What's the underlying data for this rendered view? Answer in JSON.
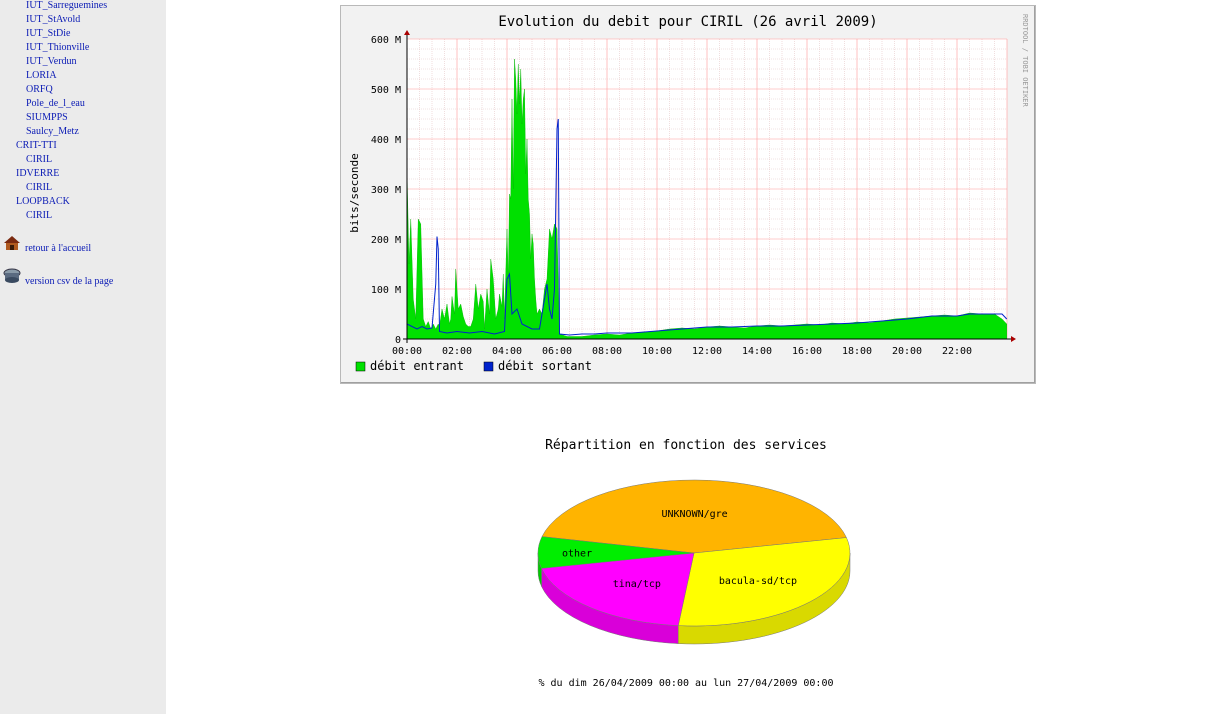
{
  "sidebar": {
    "sites_top": [
      "IUT_Sarreguemines",
      "IUT_StAvold",
      "IUT_StDie",
      "IUT_Thionville",
      "IUT_Verdun",
      "LORIA",
      "ORFQ",
      "Pole_de_l_eau",
      "SIUMPPS",
      "Saulcy_Metz"
    ],
    "groups": [
      {
        "name": "CRIT-TTI",
        "items": [
          "CIRIL"
        ]
      },
      {
        "name": "IDVERRE",
        "items": [
          "CIRIL"
        ]
      },
      {
        "name": "LOOPBACK",
        "items": [
          "CIRIL"
        ]
      }
    ],
    "home_link": {
      "label": "retour à l'accueil",
      "icon": "house-icon"
    },
    "csv_link": {
      "label": "version csv de la page",
      "icon": "disk-icon"
    }
  },
  "traffic_graph": {
    "title": "Evolution du debit pour CIRIL (26 avril 2009)",
    "ylabel": "bits/seconde",
    "watermark": "RRDTOOL / TOBI OETIKER",
    "legend_in": "débit entrant",
    "legend_out": "débit sortant",
    "colors": {
      "in": "#00e000",
      "out": "#0022cc",
      "grid_major": "#ff9999",
      "grid_minor": "#e6c8c8",
      "background": "#ffffff",
      "canvas": "#f2f2f2"
    }
  },
  "pie": {
    "title": "Répartition en fonction des services",
    "footer": "% du dim 26/04/2009 00:00 au lun 27/04/2009 00:00",
    "labels": {
      "unknown": "UNKNOWN/gre",
      "bacula": "bacula-sd/tcp",
      "tina": "tina/tcp",
      "other": "other"
    },
    "colors": {
      "unknown": "#ffb400",
      "bacula": "#ffff00",
      "tina": "#ff00ff",
      "other": "#00ee00"
    }
  },
  "chart_data": [
    {
      "type": "area",
      "title": "Evolution du debit pour CIRIL (26 avril 2009)",
      "ylabel": "bits/seconde",
      "ylim": [
        0,
        600
      ],
      "yunit": "M",
      "yticks": [
        "0",
        "100 M",
        "200 M",
        "300 M",
        "400 M",
        "500 M",
        "600 M"
      ],
      "xticks": [
        "00:00",
        "02:00",
        "04:00",
        "06:00",
        "08:00",
        "10:00",
        "12:00",
        "14:00",
        "16:00",
        "18:00",
        "20:00",
        "22:00"
      ],
      "xlim_hours": [
        0,
        24
      ],
      "grid": true,
      "legend_placement": "bottom-left",
      "series": [
        {
          "name": "débit entrant",
          "points": [
            [
              0.0,
              340
            ],
            [
              0.08,
              150
            ],
            [
              0.15,
              240
            ],
            [
              0.25,
              80
            ],
            [
              0.35,
              40
            ],
            [
              0.45,
              240
            ],
            [
              0.55,
              230
            ],
            [
              0.65,
              40
            ],
            [
              0.75,
              25
            ],
            [
              0.85,
              35
            ],
            [
              0.95,
              20
            ],
            [
              1.05,
              30
            ],
            [
              1.15,
              20
            ],
            [
              1.25,
              30
            ],
            [
              1.3,
              25
            ],
            [
              1.4,
              60
            ],
            [
              1.5,
              40
            ],
            [
              1.6,
              70
            ],
            [
              1.7,
              30
            ],
            [
              1.75,
              40
            ],
            [
              1.8,
              85
            ],
            [
              1.9,
              50
            ],
            [
              1.95,
              140
            ],
            [
              2.05,
              60
            ],
            [
              2.15,
              70
            ],
            [
              2.25,
              45
            ],
            [
              2.35,
              30
            ],
            [
              2.45,
              25
            ],
            [
              2.55,
              25
            ],
            [
              2.65,
              40
            ],
            [
              2.75,
              110
            ],
            [
              2.85,
              60
            ],
            [
              2.95,
              90
            ],
            [
              3.05,
              75
            ],
            [
              3.1,
              20
            ],
            [
              3.2,
              100
            ],
            [
              3.3,
              50
            ],
            [
              3.35,
              160
            ],
            [
              3.45,
              120
            ],
            [
              3.55,
              40
            ],
            [
              3.65,
              60
            ],
            [
              3.7,
              90
            ],
            [
              3.8,
              65
            ],
            [
              3.85,
              130
            ],
            [
              3.9,
              40
            ],
            [
              4.0,
              220
            ],
            [
              4.05,
              120
            ],
            [
              4.1,
              290
            ],
            [
              4.15,
              280
            ],
            [
              4.2,
              480
            ],
            [
              4.25,
              300
            ],
            [
              4.3,
              560
            ],
            [
              4.35,
              520
            ],
            [
              4.4,
              450
            ],
            [
              4.45,
              550
            ],
            [
              4.5,
              470
            ],
            [
              4.55,
              540
            ],
            [
              4.6,
              430
            ],
            [
              4.65,
              480
            ],
            [
              4.7,
              500
            ],
            [
              4.75,
              330
            ],
            [
              4.8,
              400
            ],
            [
              4.85,
              280
            ],
            [
              4.9,
              250
            ],
            [
              4.95,
              160
            ],
            [
              5.0,
              210
            ],
            [
              5.05,
              190
            ],
            [
              5.1,
              120
            ],
            [
              5.15,
              80
            ],
            [
              5.2,
              50
            ],
            [
              5.3,
              60
            ],
            [
              5.4,
              50
            ],
            [
              5.5,
              100
            ],
            [
              5.6,
              120
            ],
            [
              5.7,
              220
            ],
            [
              5.8,
              200
            ],
            [
              5.9,
              230
            ],
            [
              6.0,
              220
            ],
            [
              6.1,
              10
            ],
            [
              6.4,
              5
            ],
            [
              7.0,
              5
            ],
            [
              7.5,
              8
            ],
            [
              8.0,
              10
            ],
            [
              8.5,
              8
            ],
            [
              9.0,
              12
            ],
            [
              9.5,
              14
            ],
            [
              10.0,
              16
            ],
            [
              10.5,
              20
            ],
            [
              11.0,
              22
            ],
            [
              11.5,
              20
            ],
            [
              12.0,
              24
            ],
            [
              12.5,
              26
            ],
            [
              13.0,
              24
            ],
            [
              13.5,
              22
            ],
            [
              14.0,
              26
            ],
            [
              14.5,
              28
            ],
            [
              15.0,
              26
            ],
            [
              15.5,
              28
            ],
            [
              16.0,
              30
            ],
            [
              16.5,
              28
            ],
            [
              17.0,
              32
            ],
            [
              17.5,
              30
            ],
            [
              18.0,
              34
            ],
            [
              18.5,
              32
            ],
            [
              19.0,
              36
            ],
            [
              19.5,
              40
            ],
            [
              20.0,
              42
            ],
            [
              20.5,
              44
            ],
            [
              21.0,
              46
            ],
            [
              21.5,
              48
            ],
            [
              22.0,
              46
            ],
            [
              22.5,
              52
            ],
            [
              23.0,
              50
            ],
            [
              23.5,
              50
            ],
            [
              23.8,
              40
            ],
            [
              23.99,
              30
            ]
          ]
        },
        {
          "name": "débit sortant",
          "points": [
            [
              0.0,
              30
            ],
            [
              0.2,
              25
            ],
            [
              0.4,
              20
            ],
            [
              0.6,
              25
            ],
            [
              0.8,
              20
            ],
            [
              1.0,
              22
            ],
            [
              1.15,
              110
            ],
            [
              1.2,
              205
            ],
            [
              1.25,
              180
            ],
            [
              1.3,
              15
            ],
            [
              1.6,
              12
            ],
            [
              2.0,
              15
            ],
            [
              2.5,
              12
            ],
            [
              3.0,
              15
            ],
            [
              3.5,
              10
            ],
            [
              3.9,
              15
            ],
            [
              4.0,
              120
            ],
            [
              4.1,
              130
            ],
            [
              4.2,
              50
            ],
            [
              4.4,
              60
            ],
            [
              4.6,
              30
            ],
            [
              5.0,
              20
            ],
            [
              5.3,
              20
            ],
            [
              5.5,
              80
            ],
            [
              5.6,
              110
            ],
            [
              5.7,
              60
            ],
            [
              5.8,
              40
            ],
            [
              5.9,
              100
            ],
            [
              6.0,
              420
            ],
            [
              6.05,
              440
            ],
            [
              6.1,
              10
            ],
            [
              6.5,
              8
            ],
            [
              7.0,
              10
            ],
            [
              7.5,
              10
            ],
            [
              8.0,
              12
            ],
            [
              9.0,
              12
            ],
            [
              10.0,
              16
            ],
            [
              11.0,
              20
            ],
            [
              12.0,
              24
            ],
            [
              13.0,
              24
            ],
            [
              14.0,
              26
            ],
            [
              15.0,
              26
            ],
            [
              16.0,
              28
            ],
            [
              17.0,
              30
            ],
            [
              18.0,
              32
            ],
            [
              19.0,
              36
            ],
            [
              20.0,
              40
            ],
            [
              21.0,
              46
            ],
            [
              22.0,
              46
            ],
            [
              22.5,
              50
            ],
            [
              23.0,
              50
            ],
            [
              23.5,
              50
            ],
            [
              23.8,
              50
            ],
            [
              23.99,
              40
            ]
          ]
        }
      ]
    },
    {
      "type": "pie",
      "title": "Répartition en fonction des services",
      "categories": [
        "UNKNOWN/gre",
        "bacula-sd/tcp",
        "tina/tcp",
        "other"
      ],
      "values": [
        43,
        30,
        20,
        7
      ],
      "footer": "% du dim 26/04/2009 00:00 au lun 27/04/2009 00:00"
    }
  ]
}
